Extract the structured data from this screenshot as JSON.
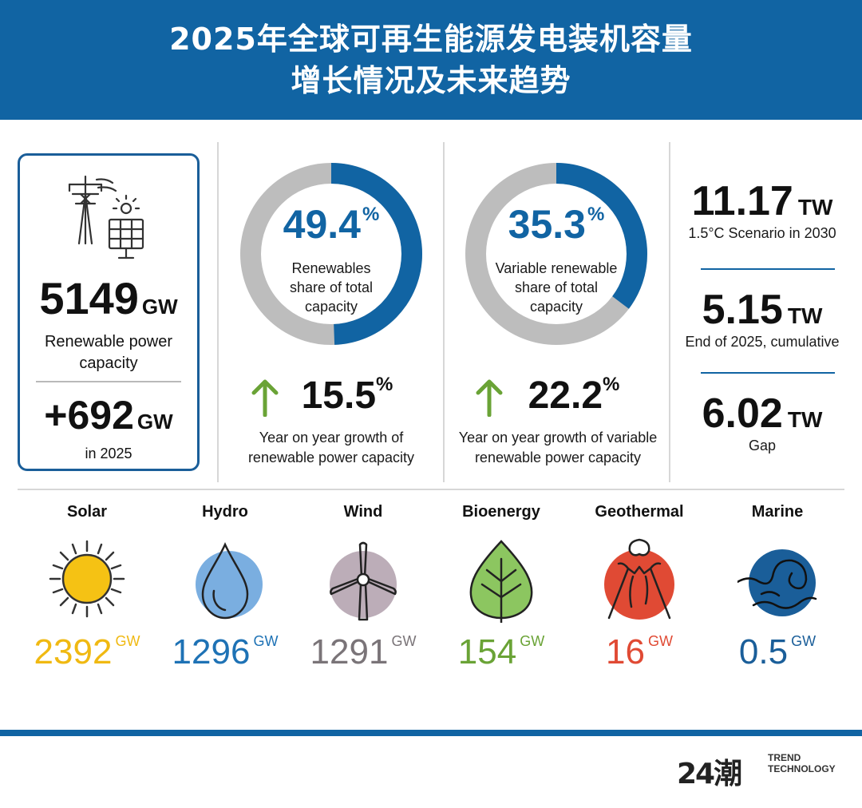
{
  "title": {
    "line1": "2025年全球可再生能源发电装机容量",
    "line2": "增长情况及未来趋势"
  },
  "capacity_card": {
    "total_value": "5149",
    "total_unit": "GW",
    "total_label_line1": "Renewable power",
    "total_label_line2": "capacity",
    "added_value": "+692",
    "added_unit": "GW",
    "added_label": "in 2025",
    "icon": "power-tower-and-solar-panel-icon"
  },
  "share_renewables": {
    "value": "49.4",
    "symbol": "%",
    "label_line1": "Renewables",
    "label_line2": "share of total",
    "label_line3": "capacity"
  },
  "share_variable": {
    "value": "35.3",
    "symbol": "%",
    "label_line1": "Variable renewable",
    "label_line2": "share of total",
    "label_line3": "capacity"
  },
  "growth_renewables": {
    "value": "15.5",
    "symbol": "%",
    "label_line1": "Year on year growth of",
    "label_line2": "renewable power capacity"
  },
  "growth_variable": {
    "value": "22.2",
    "symbol": "%",
    "label_line1": "Year on year growth of variable",
    "label_line2": "renewable power capacity"
  },
  "trend": [
    {
      "value": "11.17",
      "unit": "TW",
      "label": "1.5°C Scenario in 2030"
    },
    {
      "value": "5.15",
      "unit": "TW",
      "label": "End of 2025, cumulative"
    },
    {
      "value": "6.02",
      "unit": "TW",
      "label": "Gap"
    }
  ],
  "sources": [
    {
      "name": "Solar",
      "value": "2392",
      "unit": "GW",
      "color": "#f0b912",
      "icon": "sun-icon"
    },
    {
      "name": "Hydro",
      "value": "1296",
      "unit": "GW",
      "color": "#1e72b5",
      "icon": "water-drop-icon"
    },
    {
      "name": "Wind",
      "value": "1291",
      "unit": "GW",
      "color": "#7a7478",
      "icon": "wind-turbine-icon"
    },
    {
      "name": "Bioenergy",
      "value": "154",
      "unit": "GW",
      "color": "#6aa336",
      "icon": "leaf-icon"
    },
    {
      "name": "Geothermal",
      "value": "16",
      "unit": "GW",
      "color": "#e04a34",
      "icon": "volcano-icon"
    },
    {
      "name": "Marine",
      "value": "0.5",
      "unit": "GW",
      "color": "#1a5e99",
      "icon": "wave-icon"
    }
  ],
  "footer": {
    "logo_mark": "24潮",
    "logo_line1": "TREND",
    "logo_line2": "TECHNOLOGY"
  },
  "chart_data": [
    {
      "type": "pie",
      "title": "",
      "categories": [
        "Renewables share of total capacity",
        "Other"
      ],
      "values": [
        49.4,
        50.6
      ],
      "colors": [
        "#1164a3",
        "#bdbdbd"
      ]
    },
    {
      "type": "pie",
      "title": "",
      "categories": [
        "Variable renewable share of total capacity",
        "Other"
      ],
      "values": [
        35.3,
        64.7
      ],
      "colors": [
        "#1164a3",
        "#bdbdbd"
      ]
    },
    {
      "type": "bar",
      "title": "",
      "categories": [
        "Solar",
        "Hydro",
        "Wind",
        "Bioenergy",
        "Geothermal",
        "Marine"
      ],
      "values": [
        2392,
        1296,
        1291,
        154,
        16,
        0.5
      ],
      "ylabel": "GW"
    }
  ]
}
